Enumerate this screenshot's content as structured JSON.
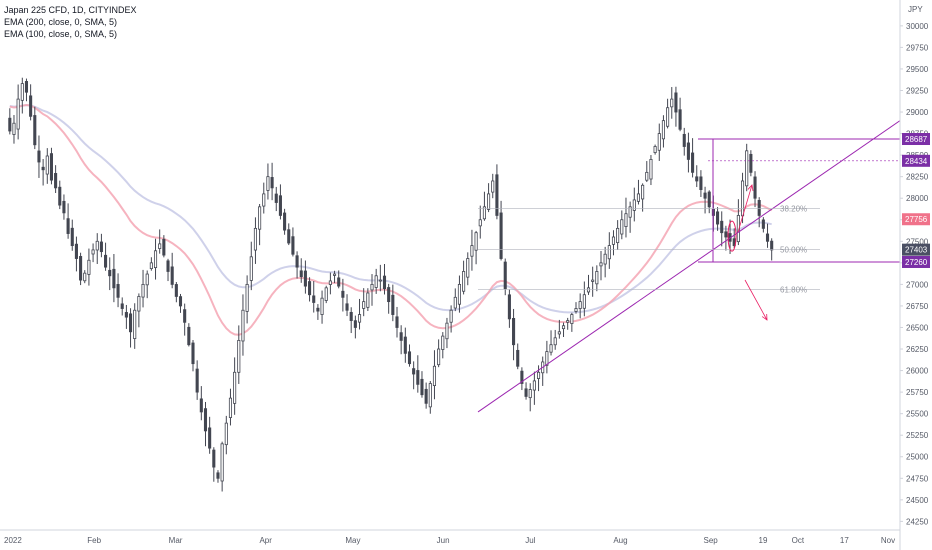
{
  "legend": {
    "line1": "Japan 225 CFD, 1D, CITYINDEX",
    "line2": "EMA (200, close, 0, SMA, 5)",
    "line3": "EMA (100, close, 0, SMA, 5)"
  },
  "currency_label": "JPY",
  "chart_data": {
    "type": "candlestick",
    "y_axis": {
      "range": [
        24150,
        30300
      ],
      "ticks": [
        24250,
        24500,
        24750,
        25000,
        25250,
        25500,
        25750,
        26000,
        26250,
        26500,
        26750,
        27000,
        27250,
        27500,
        27750,
        28000,
        28250,
        28500,
        28750,
        29000,
        29250,
        29500,
        29750,
        30000
      ]
    },
    "x_axis": {
      "labels": [
        "2022",
        "Feb",
        "Mar",
        "Apr",
        "May",
        "Jun",
        "Jul",
        "Aug",
        "Sep",
        "19",
        "Oct",
        "17",
        "Nov"
      ],
      "label_days": [
        0,
        31,
        59,
        90,
        120,
        151,
        181,
        212,
        243,
        261,
        273,
        289,
        304
      ],
      "range_days": [
        0,
        304
      ]
    },
    "closes": [
      28780,
      28870,
      29150,
      29330,
      29230,
      28950,
      28620,
      28420,
      28330,
      28490,
      28210,
      28120,
      27920,
      27830,
      27590,
      27450,
      27300,
      27050,
      27130,
      27280,
      27400,
      27500,
      27380,
      27200,
      27100,
      26960,
      26850,
      26720,
      26620,
      26450,
      26700,
      26860,
      27000,
      27120,
      27250,
      27390,
      27470,
      27340,
      27150,
      27000,
      26860,
      26750,
      26560,
      26300,
      26080,
      25750,
      25520,
      25300,
      25100,
      24880,
      24750,
      25150,
      25390,
      25680,
      25980,
      26350,
      26700,
      27000,
      27320,
      27650,
      27900,
      28050,
      28250,
      28120,
      27950,
      27800,
      27630,
      27480,
      27350,
      27200,
      27090,
      26980,
      26880,
      26790,
      26690,
      26840,
      26960,
      27040,
      27120,
      26980,
      26850,
      26700,
      26580,
      26500,
      26650,
      26800,
      26900,
      27000,
      27100,
      27050,
      26950,
      26800,
      26650,
      26500,
      26350,
      26200,
      26080,
      25960,
      25840,
      25720,
      25620,
      25850,
      26050,
      26250,
      26400,
      26550,
      26700,
      26850,
      27000,
      27150,
      27300,
      27450,
      27600,
      27750,
      27900,
      28050,
      28200,
      27800,
      27300,
      26950,
      26600,
      26300,
      26050,
      25850,
      25700,
      25780,
      25880,
      25980,
      26100,
      26220,
      26300,
      26380,
      26450,
      26520,
      26580,
      26650,
      26720,
      26800,
      26880,
      26960,
      27050,
      27150,
      27250,
      27350,
      27450,
      27550,
      27650,
      27750,
      27820,
      27900,
      27980,
      28050,
      28150,
      28300,
      28450,
      28600,
      28750,
      28900,
      29050,
      29150,
      29000,
      28800,
      28600,
      28450,
      28300,
      28200,
      28100,
      28000,
      27900,
      27800,
      27700,
      27600,
      27550,
      27500,
      27450,
      27800,
      28200,
      28550,
      28300,
      28000,
      27800,
      27650,
      27500,
      27400
    ]
  },
  "price_tags": [
    {
      "value": 28687,
      "label": "28687",
      "color": "#7b2fa6"
    },
    {
      "value": 28434,
      "label": "28434",
      "color": "#7b2fa6"
    },
    {
      "value": 27756,
      "label": "27756",
      "color": "#f0728a"
    },
    {
      "value": 27403,
      "label": "27403",
      "color": "#4a4f63"
    },
    {
      "value": 27260,
      "label": "27260",
      "color": "#7b2fa6"
    }
  ],
  "fib_levels": [
    {
      "value": 27880,
      "label": "38.20%"
    },
    {
      "value": 27403,
      "label": "50.00%"
    },
    {
      "value": 26940,
      "label": "61.80%"
    }
  ],
  "colors": {
    "candle_up": "#ffffff",
    "candle_down": "#434651",
    "wick": "#434651",
    "ema200": "#c7c9e6",
    "ema100": "#f4a6b4",
    "trendline": "#9c27b0",
    "arrow": "#e91e63"
  }
}
